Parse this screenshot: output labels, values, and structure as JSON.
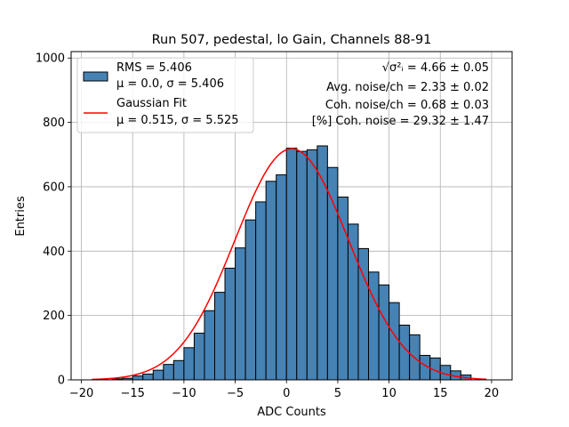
{
  "chart_data": {
    "type": "bar",
    "title": "Run 507, pedestal, lo Gain, Channels 88-91",
    "xlabel": "ADC Counts",
    "ylabel": "Entries",
    "xlim": [
      -21,
      22
    ],
    "ylim": [
      0,
      1020
    ],
    "grid": true,
    "xticks": [
      -20,
      -15,
      -10,
      -5,
      0,
      5,
      10,
      15,
      20
    ],
    "yticks": [
      0,
      200,
      400,
      600,
      800,
      1000
    ],
    "bin_width": 1,
    "bin_lefts": [
      -17,
      -16,
      -15,
      -14,
      -13,
      -12,
      -11,
      -10,
      -9,
      -8,
      -7,
      -6,
      -5,
      -4,
      -3,
      -2,
      -1,
      0,
      1,
      2,
      3,
      4,
      5,
      6,
      7,
      8,
      9,
      10,
      11,
      12,
      13,
      14,
      15,
      16,
      17
    ],
    "counts": [
      3,
      5,
      12,
      18,
      30,
      48,
      60,
      100,
      145,
      215,
      272,
      347,
      410,
      497,
      553,
      617,
      637,
      720,
      710,
      715,
      727,
      660,
      568,
      484,
      408,
      335,
      295,
      240,
      170,
      140,
      76,
      68,
      45,
      28,
      15
    ],
    "series": [
      {
        "name": "RMS = 5.406",
        "name_line2": "μ = 0.0, σ = 5.406",
        "kind": "histogram",
        "color": "#4682b4"
      },
      {
        "name": "Gaussian Fit",
        "name_line2": "μ = 0.515, σ = 5.525",
        "kind": "line",
        "color": "#ff0000",
        "mu": 0.515,
        "sigma": 5.525,
        "amplitude": 718,
        "x_range": [
          -19,
          19.5
        ]
      }
    ],
    "legend_position": "upper-left",
    "annotations": [
      {
        "label": "√σ²ᵢ",
        "value": " = 4.66 ± 0.05"
      },
      {
        "label": "Avg. noise/ch",
        "value": " = 2.33 ± 0.02"
      },
      {
        "label": "Coh. noise/ch",
        "value": " = 0.68 ± 0.03"
      },
      {
        "label": "[%] Coh. noise",
        "value": " = 29.32 ± 1.47"
      }
    ]
  }
}
